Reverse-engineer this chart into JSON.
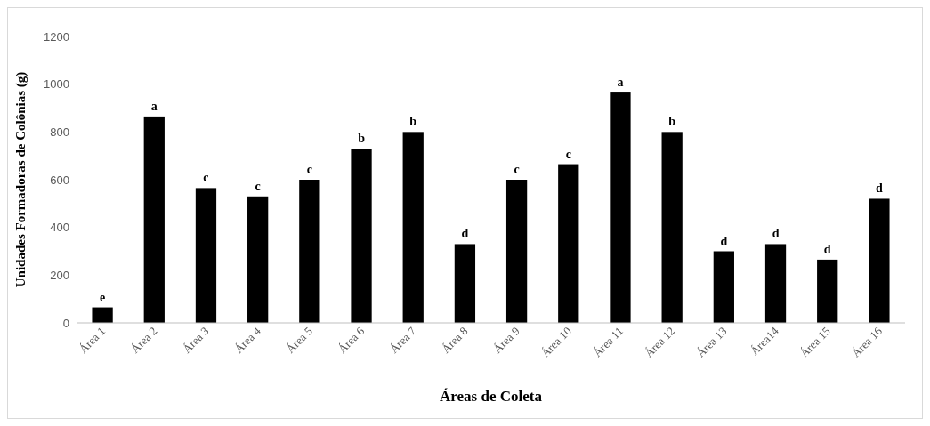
{
  "chart_data": {
    "type": "bar",
    "xlabel": "Áreas de Coleta",
    "ylabel": "Unidades Formadoras de Colônias (g)",
    "categories": [
      "Área 1",
      "Área 2",
      "Área 3",
      "Área 4",
      "Área 5",
      "Área 6",
      "Área 7",
      "Área 8",
      "Área 9",
      "Área 10",
      "Área 11",
      "Área 12",
      "Área 13",
      "Área14",
      "Área 15",
      "Área 16"
    ],
    "values": [
      65,
      865,
      565,
      530,
      600,
      730,
      800,
      330,
      600,
      665,
      965,
      800,
      300,
      330,
      265,
      520
    ],
    "color": "#000000",
    "ylim": [
      0,
      1200
    ],
    "yticks": [
      0,
      200,
      400,
      600,
      800,
      1000,
      1200
    ],
    "grid": false,
    "annotations": [
      {
        "text": "e",
        "x": "Área 1",
        "y": 65
      },
      {
        "text": "a",
        "x": "Área 2",
        "y": 865
      },
      {
        "text": "c",
        "x": "Área 3",
        "y": 565
      },
      {
        "text": "c",
        "x": "Área 4",
        "y": 530
      },
      {
        "text": "c",
        "x": "Área 5",
        "y": 600
      },
      {
        "text": "b",
        "x": "Área 6",
        "y": 730
      },
      {
        "text": "b",
        "x": "Área 7",
        "y": 800
      },
      {
        "text": "d",
        "x": "Área 8",
        "y": 330
      },
      {
        "text": "c",
        "x": "Área 9",
        "y": 600
      },
      {
        "text": "c",
        "x": "Área 10",
        "y": 665
      },
      {
        "text": "a",
        "x": "Área 11",
        "y": 965
      },
      {
        "text": "b",
        "x": "Área 12",
        "y": 800
      },
      {
        "text": "d",
        "x": "Área 13",
        "y": 300
      },
      {
        "text": "d",
        "x": "Área14",
        "y": 330
      },
      {
        "text": "d",
        "x": "Área 15",
        "y": 265
      },
      {
        "text": "d",
        "x": "Área 16",
        "y": 520
      }
    ]
  }
}
